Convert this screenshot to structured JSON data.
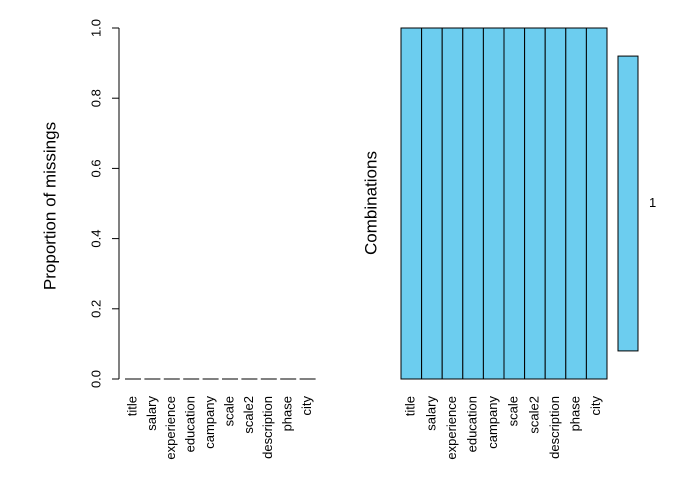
{
  "chart_data": [
    {
      "type": "bar",
      "title": "",
      "xlabel": "",
      "ylabel": "Proportion of missings",
      "ylim": [
        0,
        1
      ],
      "yticks": [
        "0.0",
        "0.2",
        "0.4",
        "0.6",
        "0.8",
        "1.0"
      ],
      "categories": [
        "title",
        "salary",
        "experience",
        "education",
        "campany",
        "scale",
        "scale2",
        "description",
        "phase",
        "city"
      ],
      "values": [
        0,
        0,
        0,
        0,
        0,
        0,
        0,
        0,
        0,
        0
      ],
      "bar_color": "#ffffff"
    },
    {
      "type": "heatmap",
      "title": "",
      "xlabel": "",
      "ylabel": "Combinations",
      "categories": [
        "title",
        "salary",
        "experience",
        "education",
        "campany",
        "scale",
        "scale2",
        "description",
        "phase",
        "city"
      ],
      "combinations": [
        {
          "pattern": [
            0,
            0,
            0,
            0,
            0,
            0,
            0,
            0,
            0,
            0
          ],
          "proportion": 1,
          "label": "1"
        }
      ],
      "observed_color": "#6ccdef",
      "missing_color": "#ff0000"
    }
  ]
}
